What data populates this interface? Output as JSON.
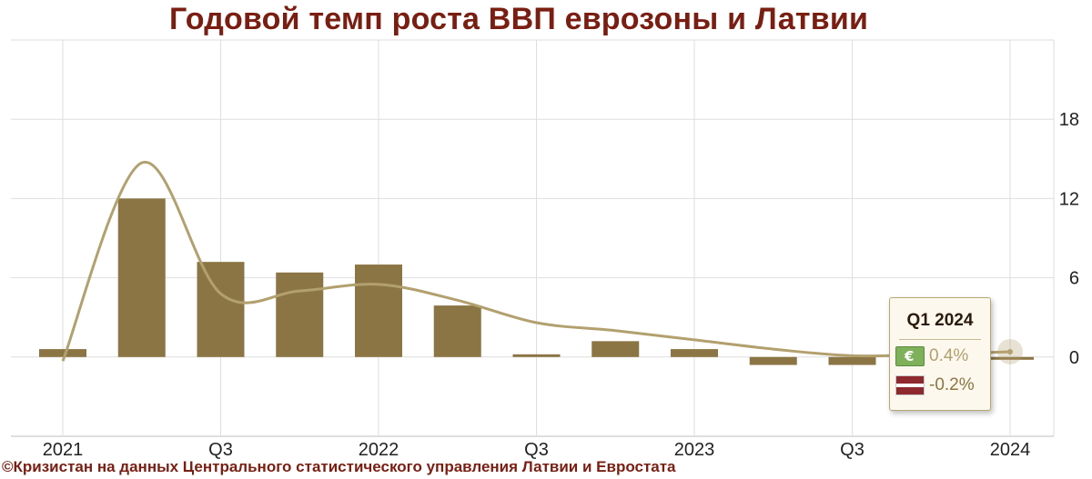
{
  "title": "Годовой темп роста ВВП еврозоны и Латвии",
  "source": "©Кризистан на данных Центрального статистического управления Латвии и Евростата",
  "colors": {
    "bar": "#8b7544",
    "line": "#b3a06f",
    "title": "#7a1e12",
    "grid": "#dedede"
  },
  "tooltip": {
    "title": "Q1 2024",
    "rows": [
      {
        "icon": "euro-banknote-icon",
        "value": "0.4%",
        "color": "#b3a06f"
      },
      {
        "icon": "latvia-flag-icon",
        "value": "-0.2%",
        "color": "#8b7544"
      }
    ]
  },
  "chart_data": {
    "type": "bar",
    "x_tick_labels": [
      "2021",
      "Q3",
      "2022",
      "Q3",
      "2023",
      "Q3",
      "2024"
    ],
    "categories": [
      "2021 Q1",
      "2021 Q2",
      "2021 Q3",
      "2021 Q4",
      "2022 Q1",
      "2022 Q2",
      "2022 Q3",
      "2022 Q4",
      "2023 Q1",
      "2023 Q2",
      "2023 Q3",
      "2023 Q4",
      "2024 Q1"
    ],
    "y_ticks": [
      "0",
      "6",
      "12",
      "18"
    ],
    "ylim": [
      -6,
      24
    ],
    "grid": true,
    "series": [
      {
        "name": "Латвия",
        "type": "bar",
        "values": [
          0.6,
          12.0,
          7.2,
          6.4,
          7.0,
          3.9,
          0.2,
          1.2,
          0.6,
          -0.6,
          -0.6,
          -0.2,
          -0.2
        ]
      },
      {
        "name": "Еврозона",
        "type": "line",
        "values": [
          -0.3,
          14.7,
          4.8,
          5.0,
          5.5,
          4.3,
          2.6,
          2.0,
          1.3,
          0.6,
          0.1,
          0.2,
          0.4
        ]
      }
    ],
    "highlight": {
      "category": "2024 Q1"
    }
  }
}
